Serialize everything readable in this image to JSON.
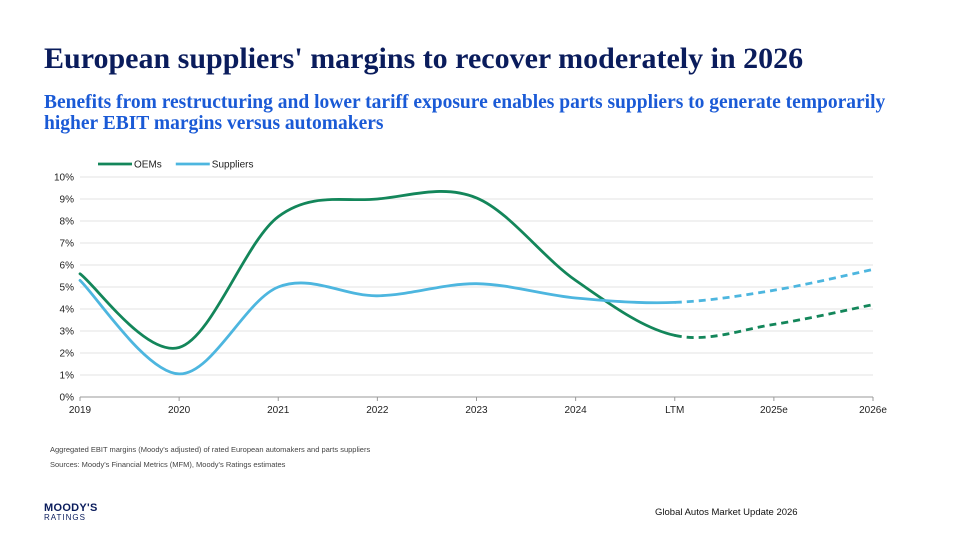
{
  "page": {
    "title": "European suppliers' margins to recover moderately in 2026",
    "subtitle": "Benefits from restructuring and lower tariff exposure enables parts suppliers to generate temporarily higher EBIT margins versus automakers",
    "note1": "Aggregated EBIT margins (Moody's adjusted) of rated European automakers and parts suppliers",
    "note2": "Sources: Moody's Financial Metrics (MFM), Moody's Ratings estimates",
    "logo_main": "MOODY'S",
    "logo_sub": "RATINGS",
    "footer_right": "Global Autos Market Update 2026"
  },
  "chart_data": {
    "type": "line",
    "title": "",
    "xlabel": "",
    "ylabel": "",
    "categories": [
      "2019",
      "2020",
      "2021",
      "2022",
      "2023",
      "2024",
      "LTM",
      "2025e",
      "2026e"
    ],
    "ylim": [
      0,
      10
    ],
    "yticks": [
      "0%",
      "1%",
      "2%",
      "3%",
      "4%",
      "5%",
      "6%",
      "7%",
      "8%",
      "9%",
      "10%"
    ],
    "grid": true,
    "legend_position": "top-left",
    "series": [
      {
        "name": "OEMs",
        "color": "#13865a",
        "values": [
          5.6,
          2.25,
          8.2,
          9.0,
          9.05,
          5.3,
          2.8,
          3.3,
          4.2
        ],
        "dashed_from_index": 6
      },
      {
        "name": "Suppliers",
        "color": "#4db6df",
        "values": [
          5.3,
          1.05,
          5.0,
          4.6,
          5.15,
          4.5,
          4.3,
          4.85,
          5.8
        ],
        "dashed_from_index": 6
      }
    ]
  }
}
